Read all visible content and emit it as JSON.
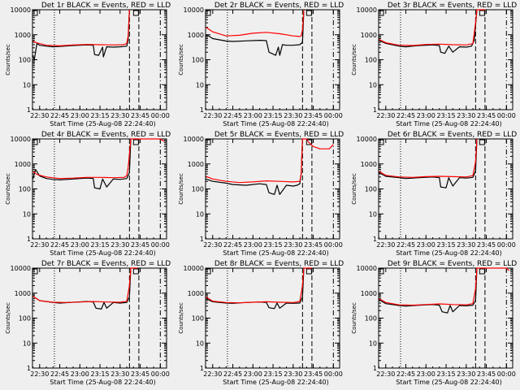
{
  "colors": {
    "background": "#efefef",
    "events": "#000000",
    "lld": "#ff0000",
    "axes": "#000000"
  },
  "chart_data": {
    "type": "line",
    "ylabel": "Counts/sec",
    "xlabel": "Start Time (25-Aug-08 22:24:40)",
    "y_scale": "log",
    "ylim": [
      1,
      10000
    ],
    "y_ticks": [
      1,
      10,
      100,
      1000,
      10000
    ],
    "y_tick_labels": [
      "1",
      "10",
      "100",
      "1000",
      "10000"
    ],
    "xlim": [
      "22:24:40",
      "00:04:40"
    ],
    "x_ticks": [
      "22:30",
      "22:45",
      "23:00",
      "23:15",
      "23:30",
      "23:45",
      "00:00"
    ],
    "vlines": [
      {
        "time": "22:41",
        "style": "dotted"
      },
      {
        "time": "23:37",
        "style": "dashed"
      },
      {
        "time": "23:44",
        "style": "dashed"
      },
      {
        "time": "00:00",
        "style": "dashdot"
      }
    ],
    "series_names": {
      "events": "BLACK = Events",
      "lld": "RED = LLD"
    },
    "panels": [
      {
        "title": "Det 1r BLACK = Events, RED = LLD",
        "events": {
          "x": [
            "22:25",
            "22:26",
            "22:28",
            "22:30",
            "22:35",
            "22:40",
            "22:45",
            "22:55",
            "23:05",
            "23:10",
            "23:11",
            "23:14",
            "23:17",
            "23:17:30",
            "23:20",
            "23:25",
            "23:30",
            "23:33",
            "23:35",
            "23:36",
            "23:37"
          ],
          "y": [
            150,
            100,
            450,
            380,
            350,
            330,
            340,
            370,
            390,
            380,
            160,
            150,
            320,
            130,
            330,
            320,
            330,
            340,
            350,
            600,
            10000
          ]
        },
        "lld": {
          "x": [
            "22:25",
            "22:28",
            "22:35",
            "22:45",
            "22:55",
            "23:05",
            "23:15",
            "23:25",
            "23:33",
            "23:35",
            "23:36",
            "23:37"
          ],
          "y": [
            550,
            470,
            380,
            360,
            390,
            410,
            400,
            390,
            400,
            450,
            900,
            10000
          ]
        }
      },
      {
        "title": "Det 2r BLACK = Events, RED = LLD",
        "events": {
          "x": [
            "22:25",
            "22:27",
            "22:30",
            "22:40",
            "22:45",
            "22:55",
            "23:05",
            "23:10",
            "23:12",
            "23:17",
            "23:19",
            "23:20",
            "23:22",
            "23:25",
            "23:30",
            "23:35",
            "23:37",
            "23:38"
          ],
          "y": [
            1000,
            900,
            700,
            560,
            540,
            570,
            600,
            580,
            200,
            150,
            320,
            150,
            400,
            380,
            380,
            400,
            500,
            10000
          ]
        },
        "lld": {
          "x": [
            "22:25",
            "22:30",
            "22:40",
            "22:50",
            "23:00",
            "23:10",
            "23:20",
            "23:30",
            "23:35",
            "23:36",
            "23:37",
            "23:38"
          ],
          "y": [
            2000,
            1300,
            900,
            950,
            1150,
            1250,
            1100,
            900,
            850,
            900,
            1600,
            10000
          ]
        }
      },
      {
        "title": "Det 3r BLACK = Events, RED = LLD",
        "events": {
          "x": [
            "22:25",
            "22:30",
            "22:40",
            "22:45",
            "22:55",
            "23:05",
            "23:10",
            "23:11",
            "23:14",
            "23:17",
            "23:20",
            "23:25",
            "23:30",
            "23:34",
            "23:36",
            "23:38"
          ],
          "y": [
            600,
            450,
            350,
            330,
            370,
            390,
            370,
            200,
            180,
            350,
            200,
            330,
            320,
            350,
            600,
            10000
          ]
        },
        "lld": {
          "x": [
            "22:25",
            "22:30",
            "22:40",
            "22:50",
            "23:00",
            "23:10",
            "23:20",
            "23:30",
            "23:35",
            "23:37",
            "23:38",
            "23:41",
            "23:43",
            "23:44"
          ],
          "y": [
            650,
            480,
            380,
            370,
            410,
            420,
            400,
            390,
            440,
            3000,
            10000,
            10000,
            10000,
            10000
          ]
        }
      },
      {
        "title": "Det 4r BLACK = Events, RED = LLD",
        "events": {
          "x": [
            "22:25",
            "22:27",
            "22:30",
            "22:35",
            "22:40",
            "22:45",
            "22:55",
            "23:05",
            "23:10",
            "23:11",
            "23:15",
            "23:17",
            "23:20",
            "23:25",
            "23:30",
            "23:35",
            "23:37",
            "23:38"
          ],
          "y": [
            250,
            600,
            330,
            260,
            240,
            230,
            250,
            270,
            260,
            110,
            100,
            250,
            120,
            250,
            240,
            260,
            450,
            10000
          ]
        },
        "lld": {
          "x": [
            "22:25",
            "22:28",
            "22:35",
            "22:45",
            "22:55",
            "23:05",
            "23:15",
            "23:25",
            "23:33",
            "23:35",
            "23:36",
            "23:37",
            "23:38",
            "00:00",
            "00:03"
          ],
          "y": [
            500,
            380,
            300,
            260,
            270,
            290,
            290,
            280,
            290,
            340,
            700,
            2500,
            10000,
            10000,
            8000
          ]
        }
      },
      {
        "title": "Det 5r BLACK = Events, RED = LLD",
        "events": {
          "x": [
            "22:25",
            "22:30",
            "22:40",
            "22:45",
            "22:55",
            "23:05",
            "23:10",
            "23:12",
            "23:16",
            "23:18",
            "23:20",
            "23:25",
            "23:30",
            "23:33",
            "23:35",
            "23:36",
            "23:37"
          ],
          "y": [
            250,
            200,
            170,
            150,
            140,
            160,
            150,
            70,
            60,
            140,
            60,
            140,
            130,
            140,
            160,
            400,
            10000
          ]
        },
        "lld": {
          "x": [
            "22:25",
            "22:30",
            "22:40",
            "22:50",
            "23:00",
            "23:10",
            "23:20",
            "23:30",
            "23:35",
            "23:36",
            "23:37",
            "23:40",
            "23:41",
            "23:45",
            "23:50",
            "23:57",
            "00:00"
          ],
          "y": [
            320,
            250,
            200,
            180,
            190,
            210,
            200,
            190,
            200,
            400,
            10000,
            10000,
            8000,
            5000,
            4000,
            4000,
            6000
          ]
        }
      },
      {
        "title": "Det 6r BLACK = Events, RED = LLD",
        "events": {
          "x": [
            "22:25",
            "22:30",
            "22:40",
            "22:45",
            "22:55",
            "23:05",
            "23:10",
            "23:11",
            "23:15",
            "23:17",
            "23:20",
            "23:25",
            "23:30",
            "23:35",
            "23:37",
            "23:38"
          ],
          "y": [
            450,
            320,
            280,
            260,
            280,
            300,
            280,
            120,
            110,
            280,
            130,
            280,
            270,
            290,
            500,
            10000
          ]
        },
        "lld": {
          "x": [
            "22:25",
            "22:30",
            "22:40",
            "22:50",
            "23:00",
            "23:10",
            "23:20",
            "23:30",
            "23:35",
            "23:37",
            "23:38"
          ],
          "y": [
            500,
            350,
            300,
            290,
            310,
            320,
            310,
            300,
            340,
            1200,
            10000
          ]
        }
      },
      {
        "title": "Det 7r BLACK = Events, RED = LLD",
        "events": {
          "x": [
            "22:25",
            "22:30",
            "22:40",
            "22:45",
            "22:55",
            "23:05",
            "23:10",
            "23:12",
            "23:16",
            "23:18",
            "23:20",
            "23:25",
            "23:30",
            "23:35",
            "23:37",
            "23:38"
          ],
          "y": [
            750,
            500,
            420,
            400,
            430,
            460,
            440,
            250,
            230,
            420,
            250,
            420,
            400,
            420,
            700,
            10000
          ]
        },
        "lld": {
          "x": [
            "22:25",
            "22:30",
            "22:40",
            "22:50",
            "23:00",
            "23:10",
            "23:20",
            "23:30",
            "23:35",
            "23:37",
            "23:38",
            "23:41",
            "23:43"
          ],
          "y": [
            750,
            500,
            430,
            420,
            440,
            460,
            440,
            430,
            470,
            2000,
            10000,
            10000,
            10000
          ]
        }
      },
      {
        "title": "Det 8r BLACK = Events, RED = LLD",
        "events": {
          "x": [
            "22:25",
            "22:30",
            "22:40",
            "22:45",
            "22:55",
            "23:05",
            "23:10",
            "23:12",
            "23:16",
            "23:18",
            "23:20",
            "23:25",
            "23:30",
            "23:35",
            "23:37",
            "23:38"
          ],
          "y": [
            600,
            450,
            400,
            390,
            420,
            440,
            420,
            260,
            240,
            400,
            250,
            400,
            390,
            400,
            700,
            10000
          ]
        },
        "lld": {
          "x": [
            "22:25",
            "22:30",
            "22:40",
            "22:50",
            "23:00",
            "23:10",
            "23:20",
            "23:30",
            "23:35",
            "23:37",
            "23:38",
            "23:41",
            "23:44"
          ],
          "y": [
            700,
            480,
            420,
            410,
            430,
            450,
            430,
            420,
            460,
            2000,
            10000,
            10000,
            10000
          ]
        }
      },
      {
        "title": "Det 9r BLACK = Events, RED = LLD",
        "events": {
          "x": [
            "22:25",
            "22:30",
            "22:40",
            "22:45",
            "22:55",
            "23:05",
            "23:10",
            "23:12",
            "23:16",
            "23:18",
            "23:20",
            "23:25",
            "23:30",
            "23:35",
            "23:37",
            "23:38"
          ],
          "y": [
            550,
            380,
            320,
            300,
            330,
            350,
            330,
            180,
            160,
            320,
            180,
            320,
            310,
            330,
            500,
            10000
          ]
        },
        "lld": {
          "x": [
            "22:25",
            "22:30",
            "22:40",
            "22:50",
            "23:00",
            "23:10",
            "23:20",
            "23:30",
            "23:35",
            "23:37",
            "23:38",
            "23:44",
            "00:00",
            "00:02"
          ],
          "y": [
            600,
            420,
            340,
            330,
            350,
            370,
            350,
            340,
            380,
            1500,
            10000,
            10000,
            10000,
            8000
          ]
        }
      }
    ]
  }
}
